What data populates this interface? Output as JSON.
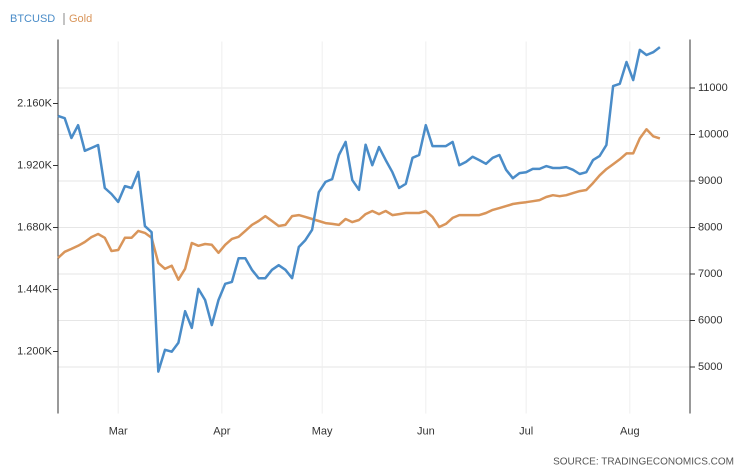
{
  "chart_data": {
    "type": "line",
    "source": "SOURCE: TRADINGECONOMICS.COM",
    "x": [
      0,
      2,
      4,
      6,
      8,
      10,
      12,
      14,
      16,
      18,
      20,
      22,
      24,
      26,
      28,
      30,
      32,
      34,
      36,
      38,
      40,
      42,
      44,
      46,
      48,
      50,
      52,
      54,
      56,
      58,
      60,
      62,
      64,
      66,
      68,
      70,
      72,
      74,
      76,
      78,
      80,
      82,
      84,
      86,
      88,
      90,
      92,
      94,
      96,
      98,
      100,
      102,
      104,
      106,
      108,
      110,
      112,
      114,
      116,
      118,
      120,
      122,
      124,
      126,
      128,
      130,
      132,
      134,
      136,
      138,
      140,
      142,
      144,
      146,
      148,
      150,
      152,
      154,
      156,
      158,
      160,
      162,
      164,
      166,
      168,
      170,
      172,
      174,
      176,
      178,
      180
    ],
    "xlim": [
      0,
      189
    ],
    "xticks": [
      {
        "value": 18,
        "label": "Mar"
      },
      {
        "value": 49,
        "label": "Apr"
      },
      {
        "value": 79,
        "label": "May"
      },
      {
        "value": 110,
        "label": "Jun"
      },
      {
        "value": 140,
        "label": "Jul"
      },
      {
        "value": 171,
        "label": "Aug"
      }
    ],
    "ylim": [
      960,
      2400
    ],
    "yticks": [
      {
        "value": 1200,
        "label": "1.200K"
      },
      {
        "value": 1440,
        "label": "1.440K"
      },
      {
        "value": 1680,
        "label": "1.680K"
      },
      {
        "value": 1920,
        "label": "1.920K"
      },
      {
        "value": 2160,
        "label": "2.160K"
      }
    ],
    "y2lim": [
      4000,
      12000
    ],
    "y2ticks": [
      5000,
      6000,
      7000,
      8000,
      9000,
      10000,
      11000
    ],
    "grid": true,
    "legend": "top-left",
    "series": [
      {
        "name": "BTCUSD",
        "color": "#4a8cc8",
        "axis": "y2",
        "values": [
          10400,
          10350,
          9925,
          10200,
          9650,
          9710,
          9775,
          8850,
          8720,
          8550,
          8890,
          8850,
          9195,
          8030,
          7900,
          4900,
          5370,
          5330,
          5520,
          6200,
          5840,
          6680,
          6440,
          5900,
          6440,
          6790,
          6830,
          7340,
          7340,
          7090,
          6910,
          6910,
          7090,
          7190,
          7090,
          6910,
          7580,
          7730,
          7950,
          8760,
          8980,
          9040,
          9560,
          9840,
          9020,
          8810,
          9780,
          9340,
          9730,
          9450,
          9190,
          8850,
          8940,
          9500,
          9560,
          10200,
          9750,
          9750,
          9750,
          9840,
          9340,
          9410,
          9520,
          9450,
          9370,
          9500,
          9560,
          9240,
          9060,
          9170,
          9190,
          9260,
          9260,
          9320,
          9280,
          9280,
          9300,
          9240,
          9150,
          9190,
          9450,
          9540,
          9775,
          11040,
          11090,
          11560,
          11170,
          11820,
          11710,
          11770,
          11880
        ]
      },
      {
        "name": "Gold",
        "color": "#d9955a",
        "axis": "y",
        "values": [
          1562,
          1586,
          1597,
          1609,
          1624,
          1643,
          1655,
          1640,
          1589,
          1593,
          1640,
          1640,
          1667,
          1659,
          1640,
          1543,
          1520,
          1532,
          1478,
          1520,
          1620,
          1609,
          1616,
          1613,
          1582,
          1613,
          1636,
          1644,
          1667,
          1690,
          1705,
          1724,
          1705,
          1686,
          1690,
          1724,
          1728,
          1721,
          1713,
          1705,
          1697,
          1694,
          1690,
          1713,
          1701,
          1709,
          1732,
          1744,
          1732,
          1744,
          1728,
          1732,
          1736,
          1736,
          1736,
          1744,
          1721,
          1682,
          1694,
          1717,
          1728,
          1728,
          1728,
          1728,
          1736,
          1748,
          1755,
          1763,
          1771,
          1775,
          1778,
          1782,
          1786,
          1798,
          1805,
          1801,
          1805,
          1813,
          1821,
          1825,
          1852,
          1882,
          1906,
          1925,
          1944,
          1967,
          1967,
          2025,
          2060,
          2033,
          2025
        ]
      }
    ]
  }
}
